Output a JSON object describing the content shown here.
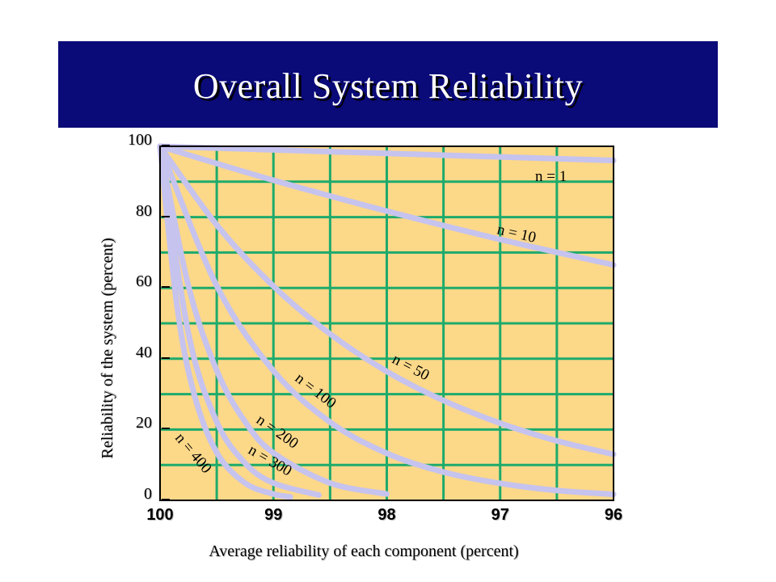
{
  "title": "Overall System Reliability",
  "colors": {
    "title_bg": "#0a0a78",
    "plot_bg": "#fcd889",
    "grid": "#1dab6c",
    "curve": "#c6c3ee"
  },
  "chart_data": {
    "type": "line",
    "title": "Overall System Reliability",
    "xlabel": "Average reliability of each component (percent)",
    "ylabel": "Reliability of the system (percent)",
    "xlim": [
      100,
      96
    ],
    "ylim": [
      0,
      100
    ],
    "grid": true,
    "x_ticks": [
      "100",
      "99",
      "98",
      "97",
      "96"
    ],
    "y_ticks": [
      "0",
      "20",
      "40",
      "60",
      "80",
      "100"
    ],
    "series": [
      {
        "name": "n = 1",
        "x": [
          100,
          99,
          98,
          97,
          96
        ],
        "values": [
          100,
          99,
          98,
          97,
          96
        ]
      },
      {
        "name": "n = 10",
        "x": [
          100,
          99,
          98,
          97,
          96
        ],
        "values": [
          100,
          90.4,
          81.7,
          73.7,
          66.5
        ]
      },
      {
        "name": "n = 50",
        "x": [
          100,
          99.5,
          99,
          98.5,
          98,
          97.5,
          97,
          96.5,
          96
        ],
        "values": [
          100,
          77.8,
          60.5,
          47.0,
          36.4,
          28.2,
          21.8,
          16.8,
          13.0
        ]
      },
      {
        "name": "n = 100",
        "x": [
          100,
          99.5,
          99,
          98.5,
          98,
          97.5,
          97,
          96.5,
          96
        ],
        "values": [
          100,
          60.6,
          36.6,
          22.1,
          13.3,
          8.0,
          4.8,
          2.8,
          1.7
        ]
      },
      {
        "name": "n = 200",
        "x": [
          100,
          99.75,
          99.5,
          99.25,
          99,
          98.5,
          98
        ],
        "values": [
          100,
          60.6,
          36.7,
          22.2,
          13.4,
          4.9,
          1.8
        ]
      },
      {
        "name": "n = 300",
        "x": [
          100,
          99.75,
          99.5,
          99.25,
          99,
          98.6
        ],
        "values": [
          100,
          47.2,
          22.2,
          10.5,
          4.9,
          1.5
        ]
      },
      {
        "name": "n = 400",
        "x": [
          100,
          99.85,
          99.7,
          99.5,
          99.25,
          99,
          98.85
        ],
        "values": [
          100,
          54.9,
          30.1,
          13.5,
          4.9,
          1.8,
          1.0
        ]
      }
    ]
  }
}
